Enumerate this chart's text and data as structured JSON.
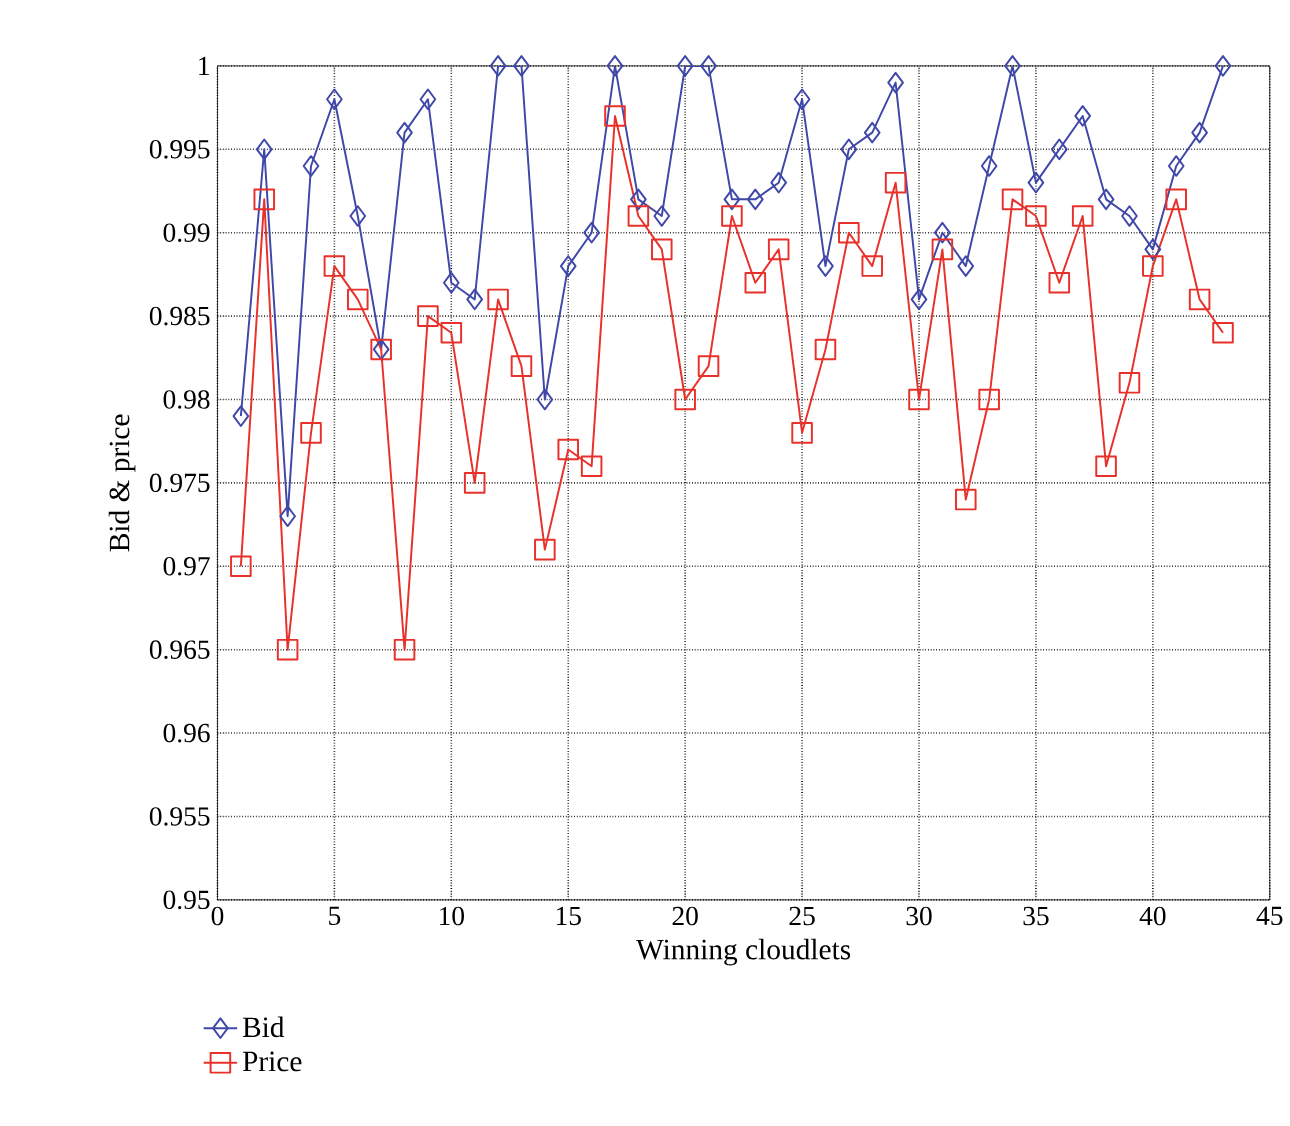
{
  "chart_data": {
    "type": "line",
    "xlabel": "Winning cloudlets",
    "ylabel": "Bid & price",
    "x": [
      1,
      2,
      3,
      4,
      5,
      6,
      7,
      8,
      9,
      10,
      11,
      12,
      13,
      14,
      15,
      16,
      17,
      18,
      19,
      20,
      21,
      22,
      23,
      24,
      25,
      26,
      27,
      28,
      29,
      30,
      31,
      32,
      33,
      34,
      35,
      36,
      37,
      38,
      39,
      40,
      41,
      42,
      43
    ],
    "series": [
      {
        "name": "Bid",
        "color": "#3f48a8",
        "marker": "diamond",
        "values": [
          0.979,
          0.995,
          0.973,
          0.994,
          0.998,
          0.991,
          0.983,
          0.996,
          0.998,
          0.987,
          0.986,
          1.0,
          1.0,
          0.98,
          0.988,
          0.99,
          1.0,
          0.992,
          0.991,
          1.0,
          1.0,
          0.992,
          0.992,
          0.993,
          0.998,
          0.988,
          0.995,
          0.996,
          0.999,
          0.986,
          0.99,
          0.988,
          0.994,
          1.0,
          0.993,
          0.995,
          0.997,
          0.992,
          0.991,
          0.989,
          0.994,
          0.996,
          1.0
        ]
      },
      {
        "name": "Price",
        "color": "#e8312a",
        "marker": "square",
        "values": [
          0.97,
          0.992,
          0.965,
          0.978,
          0.988,
          0.986,
          0.983,
          0.965,
          0.985,
          0.984,
          0.975,
          0.986,
          0.982,
          0.971,
          0.977,
          0.976,
          0.997,
          0.991,
          0.989,
          0.98,
          0.982,
          0.991,
          0.987,
          0.989,
          0.978,
          0.983,
          0.99,
          0.988,
          0.993,
          0.98,
          0.989,
          0.974,
          0.98,
          0.992,
          0.991,
          0.987,
          0.991,
          0.976,
          0.981,
          0.988,
          0.992,
          0.986,
          0.984
        ]
      }
    ],
    "xlim": [
      0,
      45
    ],
    "ylim": [
      0.95,
      1
    ],
    "xticks": [
      0,
      5,
      10,
      15,
      20,
      25,
      30,
      35,
      40,
      45
    ],
    "yticks": [
      0.95,
      0.955,
      0.96,
      0.965,
      0.97,
      0.975,
      0.98,
      0.985,
      0.99,
      0.995,
      1
    ],
    "grid": true,
    "legend": "bottom left",
    "line_style": "solid"
  }
}
